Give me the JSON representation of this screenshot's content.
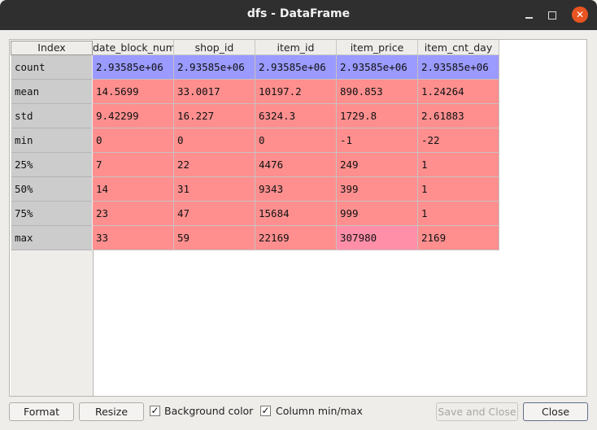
{
  "window": {
    "title": "dfs - DataFrame"
  },
  "table": {
    "index_header": "Index",
    "columns": [
      "date_block_num",
      "shop_id",
      "item_id",
      "item_price",
      "item_cnt_day"
    ],
    "rows": [
      {
        "index": "count",
        "values": [
          "2.93585e+06",
          "2.93585e+06",
          "2.93585e+06",
          "2.93585e+06",
          "2.93585e+06"
        ],
        "bg": "#9a9aff"
      },
      {
        "index": "mean",
        "values": [
          "14.5699",
          "33.0017",
          "10197.2",
          "890.853",
          "1.24264"
        ],
        "bg": "#ff8f8f"
      },
      {
        "index": "std",
        "values": [
          "9.42299",
          "16.227",
          "6324.3",
          "1729.8",
          "2.61883"
        ],
        "bg": "#ff8f8f"
      },
      {
        "index": "min",
        "values": [
          "0",
          "0",
          "0",
          "-1",
          "-22"
        ],
        "bg": "#ff8f8f"
      },
      {
        "index": "25%",
        "values": [
          "7",
          "22",
          "4476",
          "249",
          "1"
        ],
        "bg": "#ff8f8f"
      },
      {
        "index": "50%",
        "values": [
          "14",
          "31",
          "9343",
          "399",
          "1"
        ],
        "bg": "#ff8f8f"
      },
      {
        "index": "75%",
        "values": [
          "23",
          "47",
          "15684",
          "999",
          "1"
        ],
        "bg": "#ff8f8f"
      },
      {
        "index": "max",
        "values": [
          "33",
          "59",
          "22169",
          "307980",
          "2169"
        ],
        "bg": "#ff8f8f"
      }
    ],
    "highlight": {
      "row": 7,
      "col": 3,
      "bg": "#ff8fa8"
    }
  },
  "buttons": {
    "format": "Format",
    "resize": "Resize",
    "save_close": "Save and Close",
    "close": "Close"
  },
  "checkboxes": {
    "background_color": {
      "label": "Background color",
      "checked": true
    },
    "column_minmax": {
      "label": "Column min/max",
      "checked": true
    }
  },
  "checkmark": "✓"
}
